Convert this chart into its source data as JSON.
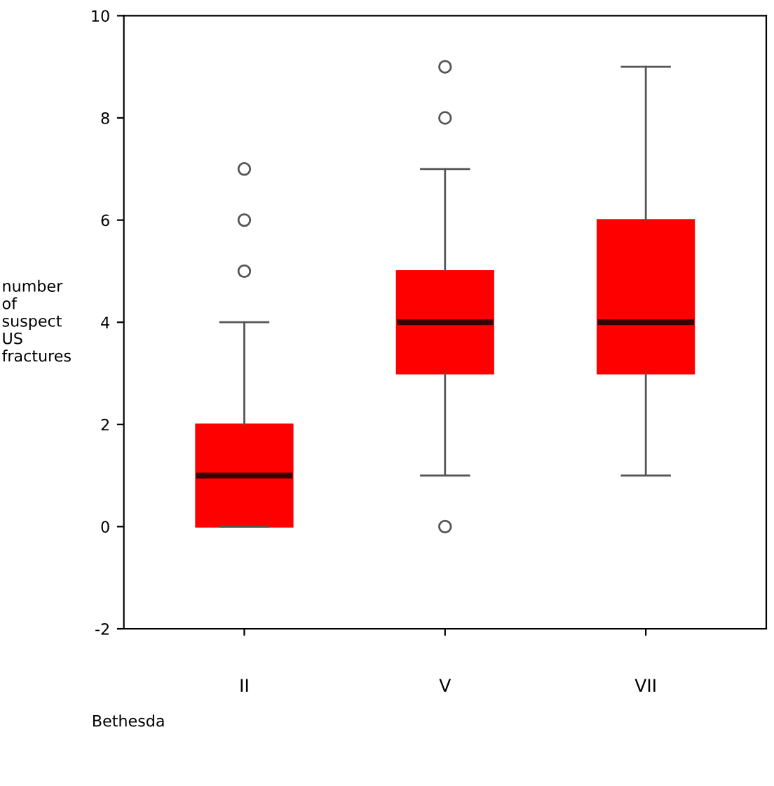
{
  "chart_data": {
    "type": "box",
    "xlabel": "Bethesda",
    "ylabel": "number\nof\nsuspect\nUS\nfractures",
    "categories": [
      "II",
      "V",
      "VII"
    ],
    "series": [
      {
        "color": "#ff0000",
        "boxes": [
          {
            "low": 0,
            "q1": 0,
            "median": 1,
            "q3": 2,
            "high": 4,
            "outliers": [
              5,
              6,
              7
            ]
          },
          {
            "low": 1,
            "q1": 3,
            "median": 4,
            "q3": 5,
            "high": 7,
            "outliers": [
              0,
              8,
              9
            ]
          },
          {
            "low": 1,
            "q1": 3,
            "median": 4,
            "q3": 6,
            "high": 9
          }
        ]
      }
    ],
    "ylim": [
      -2,
      10
    ],
    "yticks": [
      -2,
      0,
      2,
      4,
      6,
      8,
      10
    ],
    "grid": false
  }
}
